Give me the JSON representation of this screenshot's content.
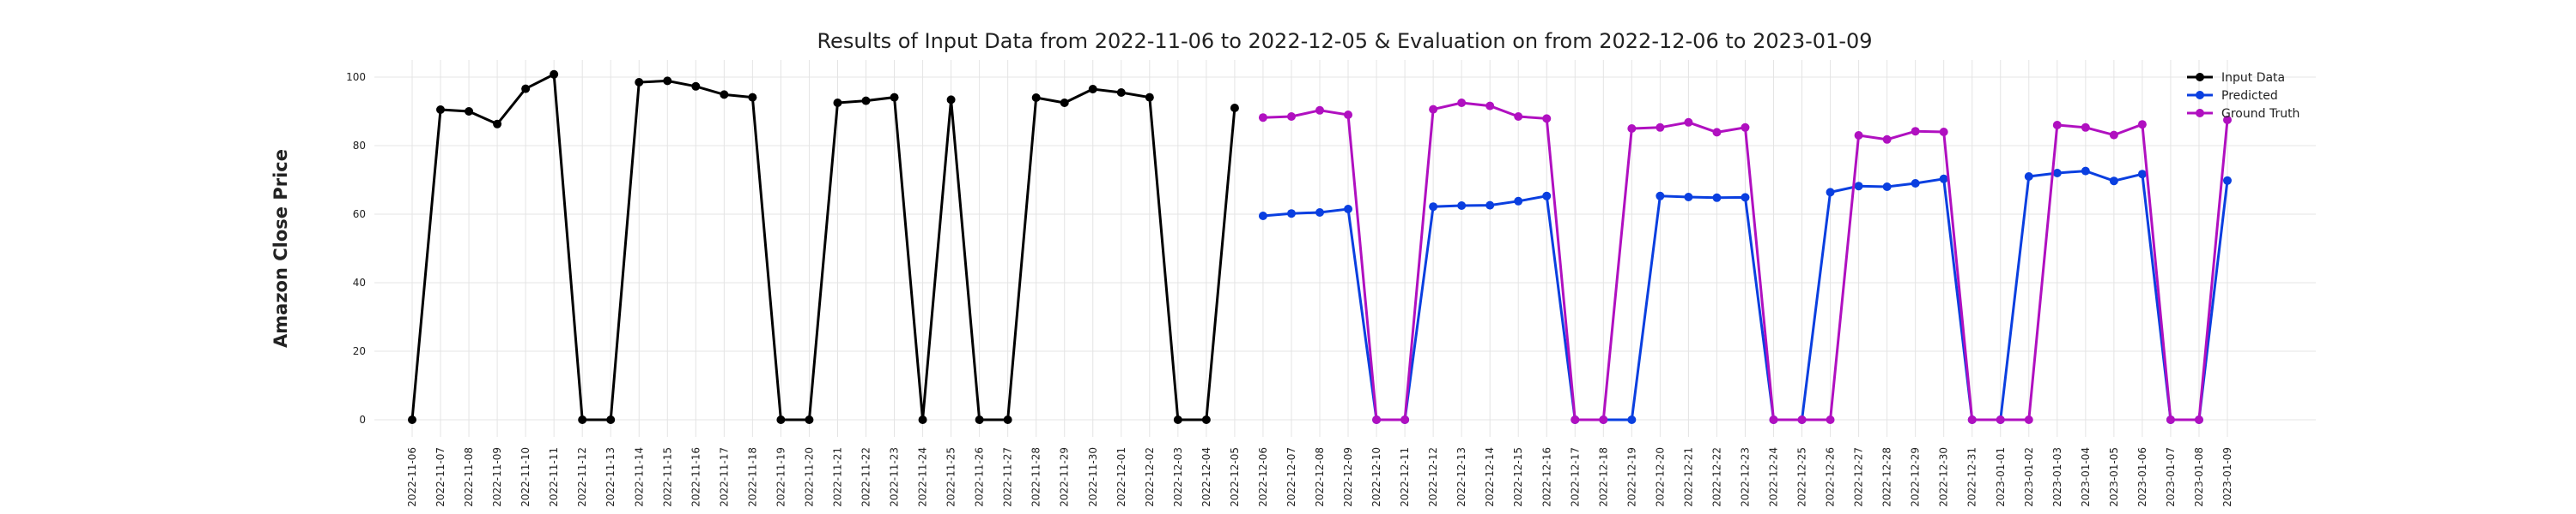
{
  "chart_data": {
    "type": "line",
    "title": "Results of Input Data from 2022-11-06 to 2022-12-05 & Evaluation on from 2022-12-06 to 2023-01-09",
    "ylabel": "Amazon Close Price",
    "categories": [
      "2022-11-06",
      "2022-11-07",
      "2022-11-08",
      "2022-11-09",
      "2022-11-10",
      "2022-11-11",
      "2022-11-12",
      "2022-11-13",
      "2022-11-14",
      "2022-11-15",
      "2022-11-16",
      "2022-11-17",
      "2022-11-18",
      "2022-11-19",
      "2022-11-20",
      "2022-11-21",
      "2022-11-22",
      "2022-11-23",
      "2022-11-24",
      "2022-11-25",
      "2022-11-26",
      "2022-11-27",
      "2022-11-28",
      "2022-11-29",
      "2022-11-30",
      "2022-12-01",
      "2022-12-02",
      "2022-12-03",
      "2022-12-04",
      "2022-12-05",
      "2022-12-06",
      "2022-12-07",
      "2022-12-08",
      "2022-12-09",
      "2022-12-10",
      "2022-12-11",
      "2022-12-12",
      "2022-12-13",
      "2022-12-14",
      "2022-12-15",
      "2022-12-16",
      "2022-12-17",
      "2022-12-18",
      "2022-12-19",
      "2022-12-20",
      "2022-12-21",
      "2022-12-22",
      "2022-12-23",
      "2022-12-24",
      "2022-12-25",
      "2022-12-26",
      "2022-12-27",
      "2022-12-28",
      "2022-12-29",
      "2022-12-30",
      "2022-12-31",
      "2023-01-01",
      "2023-01-02",
      "2023-01-03",
      "2023-01-04",
      "2023-01-05",
      "2023-01-06",
      "2023-01-07",
      "2023-01-08",
      "2023-01-09"
    ],
    "series": [
      {
        "name": "Input Data",
        "color": "#000000",
        "values": [
          0,
          90.5,
          90,
          86.3,
          96.6,
          100.8,
          0,
          0,
          98.5,
          98.9,
          97.3,
          94.9,
          94.1,
          0,
          0,
          92.5,
          93.1,
          94.1,
          0,
          93.4,
          0,
          0,
          94,
          92.5,
          96.5,
          95.5,
          94.1,
          0,
          0,
          91,
          null,
          null,
          null,
          null,
          null,
          null,
          null,
          null,
          null,
          null,
          null,
          null,
          null,
          null,
          null,
          null,
          null,
          null,
          null,
          null,
          null,
          null,
          null,
          null,
          null,
          null,
          null,
          null,
          null,
          null,
          null,
          null,
          null,
          null,
          null
        ]
      },
      {
        "name": "Predicted",
        "color": "#0a3fe0",
        "values": [
          null,
          null,
          null,
          null,
          null,
          null,
          null,
          null,
          null,
          null,
          null,
          null,
          null,
          null,
          null,
          null,
          null,
          null,
          null,
          null,
          null,
          null,
          null,
          null,
          null,
          null,
          null,
          null,
          null,
          null,
          59.5,
          60.2,
          60.5,
          61.5,
          0,
          0,
          62.2,
          62.5,
          62.6,
          63.8,
          65.3,
          0,
          0,
          0,
          65.3,
          65,
          64.8,
          64.9,
          0,
          0,
          66.4,
          68.2,
          68,
          69,
          70.3,
          0,
          0,
          71,
          72,
          72.6,
          69.7,
          71.7,
          0,
          0,
          69.8
        ]
      },
      {
        "name": "Ground Truth",
        "color": "#b010c0",
        "values": [
          null,
          null,
          null,
          null,
          null,
          null,
          null,
          null,
          null,
          null,
          null,
          null,
          null,
          null,
          null,
          null,
          null,
          null,
          null,
          null,
          null,
          null,
          null,
          null,
          null,
          null,
          null,
          null,
          null,
          null,
          88.2,
          88.5,
          90.3,
          89,
          0,
          0,
          90.6,
          92.5,
          91.6,
          88.5,
          87.9,
          0,
          0,
          85,
          85.3,
          86.8,
          83.9,
          85.3,
          0,
          0,
          0,
          83,
          81.8,
          84.2,
          84,
          0,
          0,
          0,
          86,
          85.3,
          83.1,
          86.2,
          0,
          0,
          87.5
        ]
      }
    ],
    "ylim": [
      -5,
      105
    ],
    "yticks": [
      0,
      20,
      40,
      60,
      80,
      100
    ],
    "grid": true,
    "legend": "upper right"
  }
}
